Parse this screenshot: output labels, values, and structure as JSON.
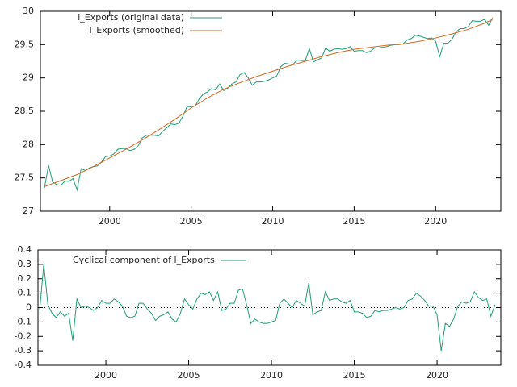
{
  "chart_data": [
    {
      "type": "line",
      "legend": "upper-left",
      "xlim": [
        1995.75,
        2024
      ],
      "xticks": [
        2000,
        2005,
        2010,
        2015,
        2020
      ],
      "ylim": [
        27,
        30
      ],
      "yticks": [
        27,
        27.5,
        28,
        28.5,
        29,
        29.5,
        30
      ],
      "x": [
        1996,
        1996.25,
        1996.5,
        1996.75,
        1997,
        1997.25,
        1997.5,
        1997.75,
        1998,
        1998.25,
        1998.5,
        1998.75,
        1999,
        1999.25,
        1999.5,
        1999.75,
        2000,
        2000.25,
        2000.5,
        2000.75,
        2001,
        2001.25,
        2001.5,
        2001.75,
        2002,
        2002.25,
        2002.5,
        2002.75,
        2003,
        2003.25,
        2003.5,
        2003.75,
        2004,
        2004.25,
        2004.5,
        2004.75,
        2005,
        2005.25,
        2005.5,
        2005.75,
        2006,
        2006.25,
        2006.5,
        2006.75,
        2007,
        2007.25,
        2007.5,
        2007.75,
        2008,
        2008.25,
        2008.5,
        2008.75,
        2009,
        2009.25,
        2009.5,
        2009.75,
        2010,
        2010.25,
        2010.5,
        2010.75,
        2011,
        2011.25,
        2011.5,
        2011.75,
        2012,
        2012.25,
        2012.5,
        2012.75,
        2013,
        2013.25,
        2013.5,
        2013.75,
        2014,
        2014.25,
        2014.5,
        2014.75,
        2015,
        2015.25,
        2015.5,
        2015.75,
        2016,
        2016.25,
        2016.5,
        2016.75,
        2017,
        2017.25,
        2017.5,
        2017.75,
        2018,
        2018.25,
        2018.5,
        2018.75,
        2019,
        2019.25,
        2019.5,
        2019.75,
        2020,
        2020.25,
        2020.5,
        2020.75,
        2021,
        2021.25,
        2021.5,
        2021.75,
        2022,
        2022.25,
        2022.5,
        2022.75,
        2023,
        2023.25,
        2023.5
      ],
      "series": [
        {
          "name": "l_Exports (original data)",
          "color": "#1f9e77",
          "values": [
            27.35,
            27.69,
            27.44,
            27.4,
            27.39,
            27.45,
            27.45,
            27.49,
            27.32,
            27.64,
            27.61,
            27.65,
            27.67,
            27.68,
            27.74,
            27.82,
            27.83,
            27.86,
            27.93,
            27.94,
            27.94,
            27.91,
            27.93,
            27.98,
            28.1,
            28.14,
            28.14,
            28.14,
            28.13,
            28.2,
            28.25,
            28.31,
            28.3,
            28.32,
            28.43,
            28.57,
            28.57,
            28.58,
            28.69,
            28.76,
            28.79,
            28.84,
            28.82,
            28.91,
            28.81,
            28.85,
            28.91,
            28.94,
            29.05,
            29.08,
            29.0,
            28.89,
            28.94,
            28.94,
            28.95,
            28.97,
            29.0,
            29.03,
            29.17,
            29.22,
            29.21,
            29.2,
            29.27,
            29.26,
            29.26,
            29.44,
            29.24,
            29.27,
            29.3,
            29.45,
            29.4,
            29.43,
            29.44,
            29.43,
            29.44,
            29.47,
            29.4,
            29.41,
            29.41,
            29.38,
            29.4,
            29.45,
            29.45,
            29.46,
            29.47,
            29.49,
            29.5,
            29.5,
            29.51,
            29.57,
            29.59,
            29.64,
            29.63,
            29.61,
            29.59,
            29.6,
            29.55,
            29.32,
            29.52,
            29.52,
            29.58,
            29.69,
            29.74,
            29.74,
            29.77,
            29.86,
            29.85,
            29.85,
            29.88,
            29.79,
            29.9
          ]
        },
        {
          "name": "l_Exports (smoothed)",
          "color": "#d9661f",
          "x": [
            1996,
            1997,
            1998,
            1999,
            2000,
            2001,
            2002,
            2003,
            2004,
            2005,
            2006,
            2007,
            2008,
            2009,
            2010,
            2011,
            2012,
            2013,
            2014,
            2015,
            2016,
            2017,
            2018,
            2019,
            2020,
            2021,
            2022,
            2023,
            2023.5
          ],
          "values": [
            27.37,
            27.46,
            27.55,
            27.67,
            27.8,
            27.93,
            28.07,
            28.22,
            28.38,
            28.55,
            28.7,
            28.83,
            28.93,
            29.02,
            29.1,
            29.18,
            29.25,
            29.32,
            29.38,
            29.43,
            29.46,
            29.49,
            29.51,
            29.55,
            29.6,
            29.66,
            29.73,
            29.82,
            29.88
          ]
        }
      ]
    },
    {
      "type": "line",
      "legend": "upper-left",
      "zero_line": true,
      "xlim": [
        1995.9,
        2023.85
      ],
      "xticks": [
        2000,
        2005,
        2010,
        2015,
        2020
      ],
      "ylim": [
        -0.4,
        0.4
      ],
      "yticks": [
        -0.4,
        -0.3,
        -0.2,
        -0.1,
        0,
        0.1,
        0.2,
        0.3,
        0.4
      ],
      "x": [
        1996,
        1996.25,
        1996.5,
        1996.75,
        1997,
        1997.25,
        1997.5,
        1997.75,
        1998,
        1998.25,
        1998.5,
        1998.75,
        1999,
        1999.25,
        1999.5,
        1999.75,
        2000,
        2000.25,
        2000.5,
        2000.75,
        2001,
        2001.25,
        2001.5,
        2001.75,
        2002,
        2002.25,
        2002.5,
        2002.75,
        2003,
        2003.25,
        2003.5,
        2003.75,
        2004,
        2004.25,
        2004.5,
        2004.75,
        2005,
        2005.25,
        2005.5,
        2005.75,
        2006,
        2006.25,
        2006.5,
        2006.75,
        2007,
        2007.25,
        2007.5,
        2007.75,
        2008,
        2008.25,
        2008.5,
        2008.75,
        2009,
        2009.25,
        2009.5,
        2009.75,
        2010,
        2010.25,
        2010.5,
        2010.75,
        2011,
        2011.25,
        2011.5,
        2011.75,
        2012,
        2012.25,
        2012.5,
        2012.75,
        2013,
        2013.25,
        2013.5,
        2013.75,
        2014,
        2014.25,
        2014.5,
        2014.75,
        2015,
        2015.25,
        2015.5,
        2015.75,
        2016,
        2016.25,
        2016.5,
        2016.75,
        2017,
        2017.25,
        2017.5,
        2017.75,
        2018,
        2018.25,
        2018.5,
        2018.75,
        2019,
        2019.25,
        2019.5,
        2019.75,
        2020,
        2020.25,
        2020.5,
        2020.75,
        2021,
        2021.25,
        2021.5,
        2021.75,
        2022,
        2022.25,
        2022.5,
        2022.75,
        2023,
        2023.25,
        2023.5
      ],
      "series": [
        {
          "name": "Cyclical component of l_Exports",
          "color": "#1f9e77",
          "values": [
            -0.02,
            0.3,
            0.02,
            -0.04,
            -0.07,
            -0.03,
            -0.06,
            -0.04,
            -0.23,
            0.06,
            0.0,
            0.01,
            0.0,
            -0.02,
            0.0,
            0.05,
            0.03,
            0.03,
            0.06,
            0.04,
            0.01,
            -0.06,
            -0.07,
            -0.06,
            0.03,
            0.03,
            -0.01,
            -0.04,
            -0.09,
            -0.06,
            -0.05,
            -0.03,
            -0.08,
            -0.1,
            -0.04,
            0.06,
            0.02,
            -0.01,
            0.06,
            0.1,
            0.09,
            0.11,
            0.05,
            0.11,
            -0.02,
            -0.01,
            0.03,
            0.03,
            0.12,
            0.13,
            0.02,
            -0.11,
            -0.08,
            -0.1,
            -0.11,
            -0.11,
            -0.1,
            -0.09,
            0.03,
            0.06,
            0.03,
            0.0,
            0.05,
            0.03,
            0.01,
            0.17,
            -0.05,
            -0.03,
            -0.02,
            0.11,
            0.05,
            0.06,
            0.06,
            0.04,
            0.03,
            0.05,
            -0.03,
            -0.03,
            -0.04,
            -0.07,
            -0.06,
            -0.02,
            -0.03,
            -0.02,
            -0.02,
            -0.01,
            0.0,
            -0.01,
            0.0,
            0.05,
            0.06,
            0.1,
            0.08,
            0.05,
            0.01,
            0.01,
            -0.05,
            -0.3,
            -0.11,
            -0.13,
            -0.08,
            0.01,
            0.04,
            0.03,
            0.04,
            0.11,
            0.07,
            0.05,
            0.06,
            -0.06,
            0.02
          ]
        }
      ]
    }
  ]
}
